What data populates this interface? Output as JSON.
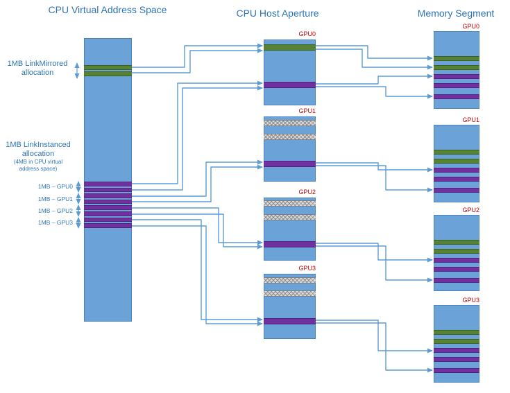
{
  "titles": {
    "left": "CPU Virtual Address Space",
    "middle": "CPU Host Aperture",
    "right": "Memory Segment"
  },
  "labels": {
    "mirrored_line1": "1MB LinkMirrored",
    "mirrored_line2": "allocation",
    "instanced_line1": "1MB LinkInstanced",
    "instanced_line2": "allocation",
    "instanced_small1": "(4MB in CPU virtual",
    "instanced_small2": "address space)",
    "gpu_rows": [
      "1MB – GPU0",
      "1MB – GPU1",
      "1MB – GPU2",
      "1MB – GPU3"
    ]
  },
  "colors": {
    "box_fill": "#6ba3d8",
    "box_border": "#4a84c0",
    "green_fill": "#568234",
    "green_border": "#3c611f",
    "purple_fill": "#7030a0",
    "purple_border": "#54217c",
    "hatch_fill": "#d9d9d9",
    "hatch_line": "#8c8c8c",
    "hatch_border": "#7f7f7f",
    "arrow": "#5b9bd5",
    "title_text": "#2e75b6",
    "gpu_label_text": "#c00000",
    "side_label_text": "#2e75b6"
  },
  "vas": {
    "green_stripe_count": 2,
    "purple_stripe_count": 8
  },
  "aperture": {
    "boxes": [
      {
        "label": "GPU0",
        "stripes": [
          "green",
          "purple"
        ]
      },
      {
        "label": "GPU1",
        "stripes": [
          "hatch",
          "hatch",
          "purple"
        ]
      },
      {
        "label": "GPU2",
        "stripes": [
          "hatch",
          "hatch",
          "purple"
        ]
      },
      {
        "label": "GPU3",
        "stripes": [
          "hatch",
          "hatch",
          "purple"
        ]
      }
    ]
  },
  "memory": {
    "boxes": [
      {
        "label": "GPU0",
        "stripes": [
          "green",
          "green",
          "purple",
          "purple",
          "purple"
        ]
      },
      {
        "label": "GPU1",
        "stripes": [
          "green",
          "green",
          "purple",
          "purple",
          "purple"
        ]
      },
      {
        "label": "GPU2",
        "stripes": [
          "green",
          "green",
          "purple",
          "purple",
          "purple"
        ]
      },
      {
        "label": "GPU3",
        "stripes": [
          "green",
          "green",
          "purple",
          "purple",
          "purple"
        ]
      }
    ]
  },
  "connections": [
    {
      "from": "vas-linkmirrored",
      "to": "aperture-gpu0-green",
      "arrows": 2
    },
    {
      "from": "vas-linkinstanced-gpu0",
      "to": "aperture-gpu0-purple",
      "arrows": 2
    },
    {
      "from": "vas-linkinstanced-gpu1",
      "to": "aperture-gpu1-purple",
      "arrows": 2
    },
    {
      "from": "vas-linkinstanced-gpu2",
      "to": "aperture-gpu2-purple",
      "arrows": 2
    },
    {
      "from": "vas-linkinstanced-gpu3",
      "to": "aperture-gpu3-purple",
      "arrows": 2
    },
    {
      "from": "aperture-gpu0-green",
      "to": "memory-gpu0-green",
      "arrows": 2
    },
    {
      "from": "aperture-gpu0-purple",
      "to": "memory-gpu0-purple",
      "arrows": 2
    },
    {
      "from": "aperture-gpu1-purple",
      "to": "memory-gpu1-purple",
      "arrows": 2
    },
    {
      "from": "aperture-gpu2-purple",
      "to": "memory-gpu2-purple",
      "arrows": 2
    },
    {
      "from": "aperture-gpu3-purple",
      "to": "memory-gpu3-purple",
      "arrows": 2
    }
  ]
}
